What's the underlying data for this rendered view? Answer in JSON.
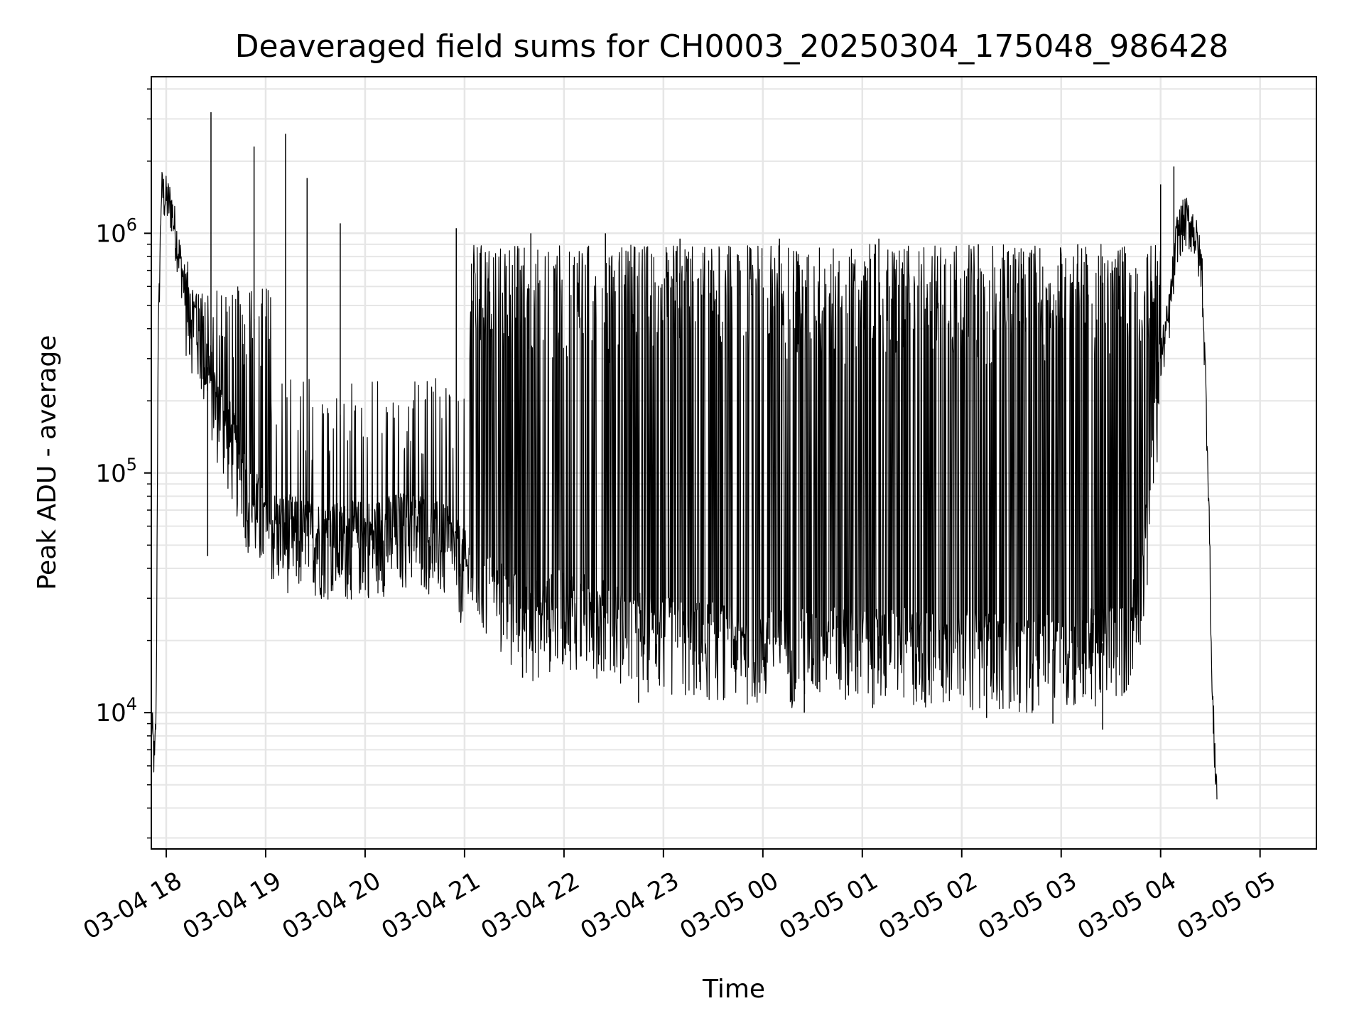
{
  "chart_data": {
    "type": "line",
    "title": "Deaveraged field sums for CH0003_20250304_175048_986428",
    "xlabel": "Time",
    "ylabel": "Peak ADU - average",
    "y_scale": "log",
    "ylim": [
      2700,
      4500000
    ],
    "xlim": [
      "2025-03-04 17:51",
      "2025-03-05 05:34"
    ],
    "grid": true,
    "line_color": "#000000",
    "grid_color": "#e6e6e6",
    "x_ticks": [
      {
        "t": "2025-03-04 18:00",
        "label": "03-04 18"
      },
      {
        "t": "2025-03-04 19:00",
        "label": "03-04 19"
      },
      {
        "t": "2025-03-04 20:00",
        "label": "03-04 20"
      },
      {
        "t": "2025-03-04 21:00",
        "label": "03-04 21"
      },
      {
        "t": "2025-03-04 22:00",
        "label": "03-04 22"
      },
      {
        "t": "2025-03-04 23:00",
        "label": "03-04 23"
      },
      {
        "t": "2025-03-05 00:00",
        "label": "03-05 00"
      },
      {
        "t": "2025-03-05 01:00",
        "label": "03-05 01"
      },
      {
        "t": "2025-03-05 02:00",
        "label": "03-05 02"
      },
      {
        "t": "2025-03-05 03:00",
        "label": "03-05 03"
      },
      {
        "t": "2025-03-05 04:00",
        "label": "03-05 04"
      },
      {
        "t": "2025-03-05 05:00",
        "label": "03-05 05"
      }
    ],
    "y_ticks": [
      {
        "value": 10000,
        "base": "10",
        "exp": "4"
      },
      {
        "value": 100000,
        "base": "10",
        "exp": "5"
      },
      {
        "value": 1000000,
        "base": "10",
        "exp": "6"
      }
    ],
    "series": [
      {
        "points": [
          [
            "2025-03-04 17:51",
            9500
          ],
          [
            "2025-03-04 17:53",
            6000
          ],
          [
            "2025-03-04 17:54",
            11000
          ],
          [
            "2025-03-04 17:55",
            300000
          ],
          [
            "2025-03-04 17:57",
            1500000
          ],
          [
            "2025-03-04 18:03",
            1300000
          ],
          [
            "2025-03-04 18:08",
            800000
          ],
          [
            "2025-03-04 18:12",
            550000
          ],
          [
            "2025-03-04 18:20",
            380000
          ],
          [
            "2025-03-04 18:30",
            200000
          ],
          [
            "2025-03-04 18:40",
            130000
          ],
          [
            "2025-03-04 18:50",
            80000
          ],
          [
            "2025-03-04 19:00",
            60000
          ],
          [
            "2025-03-04 19:20",
            55000
          ],
          [
            "2025-03-04 19:45",
            52000
          ],
          [
            "2025-03-04 20:10",
            55000
          ],
          [
            "2025-03-04 20:30",
            60000
          ],
          [
            "2025-03-04 20:50",
            50000
          ],
          [
            "2025-03-04 21:00",
            40000
          ],
          [
            "2025-03-04 21:15",
            32000
          ],
          [
            "2025-03-04 21:40",
            24000
          ],
          [
            "2025-03-04 22:00",
            28000
          ],
          [
            "2025-03-04 22:30",
            24000
          ],
          [
            "2025-03-04 23:00",
            21000
          ],
          [
            "2025-03-04 23:30",
            20000
          ],
          [
            "2025-03-05 00:00",
            19000
          ],
          [
            "2025-03-05 00:40",
            19000
          ],
          [
            "2025-03-05 01:20",
            19000
          ],
          [
            "2025-03-05 02:00",
            18500
          ],
          [
            "2025-03-05 02:40",
            18000
          ],
          [
            "2025-03-05 03:20",
            19000
          ],
          [
            "2025-03-05 03:40",
            21000
          ],
          [
            "2025-03-05 03:50",
            40000
          ],
          [
            "2025-03-05 04:00",
            300000
          ],
          [
            "2025-03-05 04:05",
            450000
          ],
          [
            "2025-03-05 04:10",
            1000000
          ],
          [
            "2025-03-05 04:15",
            1150000
          ],
          [
            "2025-03-05 04:20",
            1050000
          ],
          [
            "2025-03-05 04:25",
            700000
          ],
          [
            "2025-03-05 04:29",
            90000
          ],
          [
            "2025-03-05 04:31",
            12000
          ],
          [
            "2025-03-05 04:34",
            4500
          ]
        ],
        "spikes": [
          [
            "2025-03-04 18:27",
            3200000
          ],
          [
            "2025-03-04 18:53",
            2300000
          ],
          [
            "2025-03-04 19:12",
            2600000
          ],
          [
            "2025-03-04 19:25",
            1700000
          ],
          [
            "2025-03-04 19:45",
            1100000
          ],
          [
            "2025-03-04 20:55",
            1050000
          ],
          [
            "2025-03-04 21:40",
            1000000
          ],
          [
            "2025-03-04 22:25",
            1000000
          ],
          [
            "2025-03-04 23:10",
            950000
          ],
          [
            "2025-03-05 00:10",
            950000
          ],
          [
            "2025-03-05 01:10",
            950000
          ],
          [
            "2025-03-05 02:10",
            900000
          ],
          [
            "2025-03-05 03:10",
            900000
          ],
          [
            "2025-03-05 04:00",
            1600000
          ],
          [
            "2025-03-05 04:08",
            1900000
          ],
          [
            "2025-03-04 18:25",
            45000
          ],
          [
            "2025-03-04 21:35",
            14000
          ],
          [
            "2025-03-04 22:45",
            11000
          ],
          [
            "2025-03-05 00:25",
            10000
          ],
          [
            "2025-03-05 02:15",
            9500
          ],
          [
            "2025-03-05 02:55",
            9000
          ],
          [
            "2025-03-05 03:25",
            8500
          ]
        ]
      }
    ]
  }
}
